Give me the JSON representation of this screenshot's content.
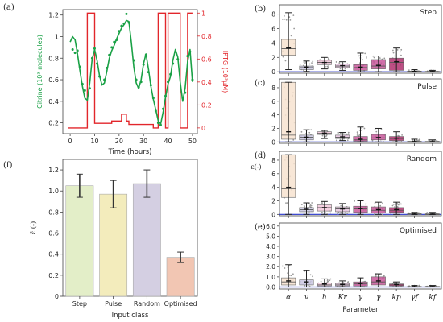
{
  "chart_data": [
    {
      "panel": "(a)",
      "type": "line",
      "xlabel": "Time (hours)",
      "ylabel_left": "Citrine (10³ molecules)",
      "ylabel_right": "IPTG (10³μM)",
      "xlim": [
        -3,
        52
      ],
      "ylim_left": [
        0.1,
        1.25
      ],
      "ylim_right": [
        -0.05,
        1.03
      ],
      "xticks": [
        0,
        10,
        20,
        30,
        40,
        50
      ],
      "yticks_left": [
        0.2,
        0.4,
        0.6,
        0.8,
        1.0,
        1.2
      ],
      "ytick_labels_left": [
        "0.2",
        "0.4",
        "0.6",
        "0.8",
        "1",
        "1.2"
      ],
      "yticks_right": [
        0,
        0.2,
        0.4,
        0.6,
        0.8,
        1.0
      ],
      "ytick_labels_right": [
        "0",
        "0.2",
        "0.4",
        "0.6",
        "0.8",
        "1"
      ],
      "colors": {
        "citrine": "#1aa146",
        "iptg": "#e2262b"
      },
      "citrine_fit": {
        "x": [
          0,
          1,
          2,
          3,
          4,
          5,
          6,
          7,
          8,
          9,
          10,
          11,
          12,
          13,
          14,
          15,
          16,
          17,
          18,
          19,
          20,
          21,
          22,
          23,
          24,
          25,
          26,
          27,
          28,
          29,
          30,
          31,
          32,
          33,
          34,
          35,
          36,
          37,
          38,
          39,
          40,
          41,
          42,
          43,
          44,
          45,
          46,
          47,
          48,
          49,
          50
        ],
        "y": [
          0.95,
          1.0,
          0.97,
          0.84,
          0.68,
          0.54,
          0.43,
          0.41,
          0.57,
          0.79,
          0.88,
          0.78,
          0.64,
          0.55,
          0.57,
          0.68,
          0.8,
          0.87,
          0.92,
          0.98,
          1.03,
          1.08,
          1.11,
          1.15,
          1.14,
          0.95,
          0.72,
          0.57,
          0.52,
          0.6,
          0.75,
          0.84,
          0.7,
          0.54,
          0.42,
          0.32,
          0.22,
          0.19,
          0.3,
          0.44,
          0.56,
          0.63,
          0.78,
          0.88,
          0.81,
          0.58,
          0.4,
          0.52,
          0.77,
          0.88,
          0.58
        ]
      },
      "citrine_points": {
        "x": [
          1,
          2,
          3,
          4,
          5,
          6,
          8,
          9,
          10,
          11,
          12,
          14,
          15,
          16,
          17,
          18,
          19,
          20,
          21,
          22,
          23,
          24,
          26,
          27,
          28,
          29,
          30,
          31,
          32,
          33,
          34,
          35,
          36,
          37,
          38,
          39,
          40,
          41,
          42,
          43,
          44,
          46,
          47,
          48,
          49,
          50
        ],
        "y": [
          0.88,
          0.85,
          0.87,
          0.72,
          0.56,
          0.5,
          0.52,
          0.8,
          0.89,
          0.75,
          0.63,
          0.6,
          0.71,
          0.83,
          0.9,
          0.95,
          0.97,
          1.05,
          1.1,
          1.12,
          1.21,
          1.13,
          0.78,
          0.6,
          0.53,
          0.58,
          0.74,
          0.83,
          0.67,
          0.55,
          0.43,
          0.31,
          0.2,
          0.18,
          0.33,
          0.45,
          0.58,
          0.65,
          0.75,
          0.86,
          0.79,
          0.43,
          0.48,
          0.82,
          0.86,
          0.6
        ]
      },
      "iptg_step": {
        "x": [
          -1,
          7,
          7,
          10,
          10,
          17,
          17,
          21,
          21,
          23,
          23,
          24,
          24,
          34,
          34,
          36,
          36,
          39,
          39,
          40,
          40,
          45,
          45,
          48,
          48,
          50
        ],
        "y": [
          0,
          0,
          1,
          1,
          0.04,
          0.04,
          0.06,
          0.06,
          0.12,
          0.12,
          0.06,
          0.06,
          0.03,
          0.03,
          0,
          0,
          1,
          1,
          0,
          0,
          1,
          1,
          0,
          0,
          1,
          1
        ]
      }
    },
    {
      "panel": "(b)",
      "type": "box",
      "title": "Step",
      "ylim": [
        -0.2,
        9.3
      ],
      "yticks": [
        0,
        2,
        4,
        6,
        8
      ],
      "ytick_labels": [
        "0",
        "2",
        "4",
        "6",
        "8"
      ],
      "categories": [
        "α",
        "v",
        "h",
        "Kr",
        "γ",
        "γ",
        "kp",
        "γf",
        "kf"
      ],
      "q1": [
        2.3,
        0.3,
        1.0,
        0.6,
        0.2,
        0.4,
        0.2,
        0.02,
        0.01
      ],
      "median": [
        3.2,
        0.6,
        1.3,
        0.8,
        0.6,
        0.8,
        1.3,
        0.05,
        0.03
      ],
      "q3": [
        4.5,
        0.8,
        1.6,
        1.1,
        1.0,
        1.7,
        1.9,
        0.1,
        0.06
      ],
      "whisker_low": [
        0.3,
        0.05,
        0.4,
        0.2,
        0.0,
        0.0,
        0.0,
        0.0,
        0.0
      ],
      "whisker_high": [
        8.2,
        1.5,
        2.0,
        1.4,
        2.6,
        2.2,
        3.3,
        0.3,
        0.2
      ],
      "mean": [
        3.3,
        0.65,
        1.3,
        0.85,
        0.65,
        0.9,
        1.4,
        0.06,
        0.04
      ]
    },
    {
      "panel": "(c)",
      "type": "box",
      "title": "Pulse",
      "ylim": [
        -0.2,
        9.3
      ],
      "yticks": [
        0,
        2,
        4,
        6,
        8
      ],
      "ytick_labels": [
        "0",
        "2",
        "4",
        "6",
        "8"
      ],
      "categories": [
        "α",
        "v",
        "h",
        "Kr",
        "γ",
        "γ",
        "kp",
        "γf",
        "kf"
      ],
      "q1": [
        0.4,
        0.3,
        1.1,
        0.5,
        0.1,
        0.3,
        0.2,
        0.0,
        0.0
      ],
      "median": [
        1.0,
        0.7,
        1.3,
        0.7,
        0.3,
        0.6,
        0.5,
        0.05,
        0.03
      ],
      "q3": [
        8.8,
        1.0,
        1.5,
        1.0,
        0.8,
        1.1,
        0.8,
        0.1,
        0.08
      ],
      "whisker_low": [
        0.0,
        0.0,
        0.5,
        0.2,
        0.0,
        0.0,
        0.0,
        0.0,
        0.0
      ],
      "whisker_high": [
        8.8,
        1.8,
        1.7,
        1.4,
        2.2,
        2.0,
        1.5,
        0.4,
        0.3
      ],
      "mean": [
        1.5,
        0.7,
        1.3,
        0.75,
        0.4,
        0.65,
        0.55,
        0.05,
        0.04
      ]
    },
    {
      "panel": "(d)",
      "type": "box",
      "title": "Random",
      "ylabel": "ε(-)",
      "ylim": [
        -0.2,
        9.3
      ],
      "yticks": [
        0,
        2,
        4,
        6,
        8
      ],
      "ytick_labels": [
        "0",
        "2",
        "4",
        "6",
        "8"
      ],
      "categories": [
        "α",
        "v",
        "h",
        "Kr",
        "γ",
        "γ",
        "kp",
        "γf",
        "kf"
      ],
      "q1": [
        2.5,
        0.4,
        0.5,
        0.4,
        0.3,
        0.2,
        0.3,
        0.0,
        0.0
      ],
      "median": [
        3.8,
        0.7,
        1.0,
        0.8,
        0.8,
        0.6,
        0.6,
        0.05,
        0.03
      ],
      "q3": [
        8.8,
        1.0,
        1.4,
        1.1,
        1.2,
        1.1,
        1.0,
        0.1,
        0.08
      ],
      "whisker_low": [
        0.0,
        0.0,
        0.0,
        0.0,
        0.0,
        0.0,
        0.0,
        0.0,
        0.0
      ],
      "whisker_high": [
        8.8,
        1.7,
        1.9,
        1.6,
        2.0,
        1.8,
        1.8,
        0.3,
        0.3
      ],
      "mean": [
        4.0,
        0.75,
        1.0,
        0.8,
        0.85,
        0.7,
        0.7,
        0.05,
        0.04
      ]
    },
    {
      "panel": "(e)",
      "type": "box",
      "title": "Optimised",
      "ylim": [
        -0.2,
        6.3
      ],
      "yticks": [
        0,
        1,
        2,
        3,
        4,
        5,
        6
      ],
      "ytick_labels": [
        "0.0",
        "1.0",
        "2.0",
        "3.0",
        "4.0",
        "5.0",
        "6.0"
      ],
      "xlabel": "Parameter",
      "categories": [
        "α",
        "v",
        "h",
        "Kr",
        "γ",
        "γ",
        "kp",
        "γf",
        "kf"
      ],
      "q1": [
        0.2,
        0.2,
        0.1,
        0.1,
        0.1,
        0.2,
        0.1,
        0.0,
        0.0
      ],
      "median": [
        0.5,
        0.4,
        0.2,
        0.2,
        0.3,
        0.5,
        0.2,
        0.03,
        0.03
      ],
      "q3": [
        0.9,
        0.7,
        0.4,
        0.35,
        0.5,
        1.0,
        0.3,
        0.06,
        0.06
      ],
      "whisker_low": [
        0.0,
        0.0,
        0.0,
        0.0,
        0.0,
        0.0,
        0.0,
        0.0,
        0.0
      ],
      "whisker_high": [
        2.2,
        1.6,
        0.8,
        0.6,
        0.9,
        1.3,
        0.5,
        0.15,
        0.15
      ],
      "mean": [
        0.6,
        0.5,
        0.3,
        0.25,
        0.35,
        0.6,
        0.25,
        0.04,
        0.04
      ]
    },
    {
      "panel": "(f)",
      "type": "bar",
      "xlabel": "Input class",
      "ylabel": "ε̄ (-)",
      "ylim": [
        0,
        1.3
      ],
      "yticks": [
        0,
        0.2,
        0.4,
        0.6,
        0.8,
        1.0,
        1.2
      ],
      "ytick_labels": [
        "0",
        "0.2",
        "0.4",
        "0.6",
        "0.8",
        "1.0",
        "1.2"
      ],
      "categories": [
        "Step",
        "Pulse",
        "Random",
        "Optimised"
      ],
      "values": [
        1.05,
        0.97,
        1.07,
        0.37
      ],
      "errors": [
        0.11,
        0.13,
        0.13,
        0.05
      ]
    }
  ],
  "colors": {
    "bar_fills": [
      "#e3eec8",
      "#f3ecbc",
      "#d4cfe2",
      "#f2c6b3"
    ],
    "box_fills": [
      "#f7e3d0",
      "#c9c6e0",
      "#f3c9dc",
      "#e7c6e0",
      "#c8579a",
      "#c8579a",
      "#b0306e",
      "#dcdcf0",
      "#dcdcf0"
    ],
    "zero_line": "#2432c8"
  }
}
